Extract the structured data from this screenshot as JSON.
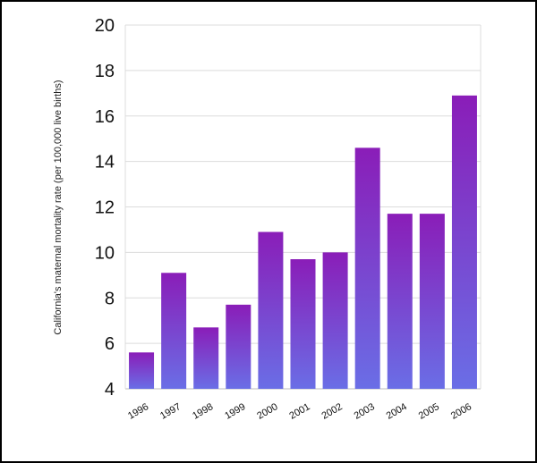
{
  "chart_data": {
    "type": "bar",
    "title": "",
    "xlabel": "",
    "ylabel": "California's maternal mortality rate (per 100,000 live births)",
    "categories": [
      "1996",
      "1997",
      "1998",
      "1999",
      "2000",
      "2001",
      "2002",
      "2003",
      "2004",
      "2005",
      "2006"
    ],
    "values": [
      5.6,
      9.1,
      6.7,
      7.7,
      10.9,
      9.7,
      10.0,
      14.6,
      11.7,
      11.7,
      16.9
    ],
    "ylim": [
      4,
      20
    ],
    "yticks": [
      "4",
      "6",
      "8",
      "10",
      "12",
      "14",
      "16",
      "18",
      "20"
    ],
    "grid": true,
    "legend": "none",
    "colors": {
      "bar_top": "#8a1db8",
      "bar_bottom": "#6a6ee6",
      "grid": "#dcdcdc",
      "axis": "#bdbdbd"
    }
  }
}
